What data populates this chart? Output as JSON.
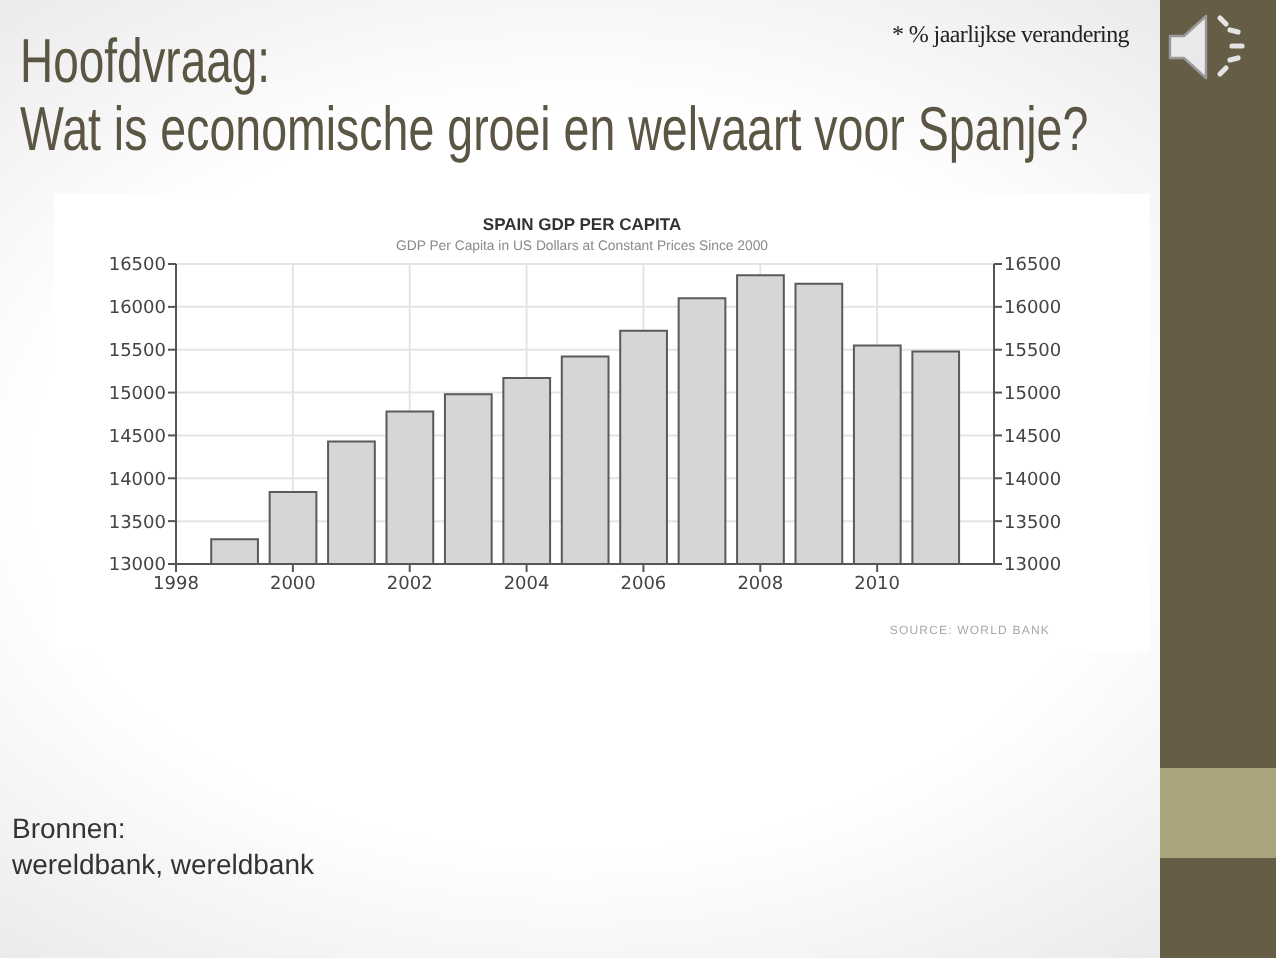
{
  "chart_data": {
    "type": "bar",
    "title": "SPAIN GDP PER CAPITA",
    "subtitle": "GDP Per Capita in US Dollars at Constant Prices Since 2000",
    "x": [
      1999,
      2000,
      2001,
      2002,
      2003,
      2004,
      2005,
      2006,
      2007,
      2008,
      2009,
      2010,
      2011
    ],
    "values": [
      13290,
      13840,
      14430,
      14780,
      14980,
      15170,
      15420,
      15720,
      16100,
      16370,
      16270,
      15550,
      15480
    ],
    "color": "#d6d6d6",
    "xlim": [
      1998,
      2012
    ],
    "xticks": [
      1998,
      2000,
      2002,
      2004,
      2006,
      2008,
      2010
    ],
    "ylim": [
      13000,
      16500
    ],
    "yticks": [
      13000,
      13500,
      14000,
      14500,
      15000,
      15500,
      16000,
      16500
    ],
    "y2lim": [
      13000,
      16500
    ],
    "y2ticks": [
      13000,
      13500,
      14000,
      14500,
      15000,
      15500,
      16000,
      16500
    ],
    "grid": true,
    "annotations": [
      "Hoofdvraag:",
      "Wat is economische groei en welvaart voor Spanje?",
      "* % jaarlijkse verandering",
      "SOURCE: WORLD BANK",
      "Bronnen:",
      "wereldbank, wereldbank"
    ]
  }
}
